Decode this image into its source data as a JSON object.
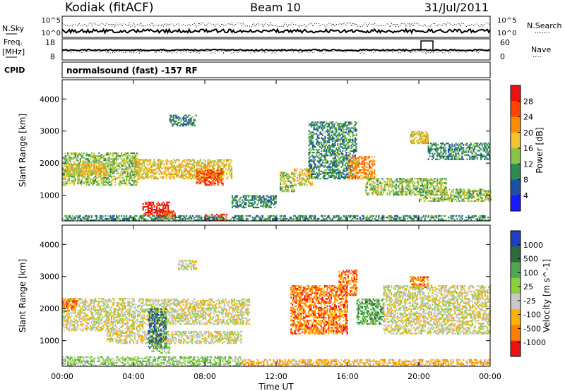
{
  "header": {
    "station": "Kodiak (fitACF)",
    "beam": "Beam 10",
    "date": "31/Jul/2011",
    "mode": "normalsound (fast) -157 RF"
  },
  "strip_labels": {
    "nsky": "N.Sky",
    "nsearch": "N.Search",
    "freq_line1": "Freq.",
    "freq_line2": "[MHz]",
    "nave": "Nave",
    "cpid": "CPID",
    "top_left_ticks": [
      "10^5",
      "10^0"
    ],
    "top_right_ticks": [
      "10^5",
      "10^0"
    ],
    "freq_ticks": [
      "18",
      "8"
    ],
    "nave_ticks": [
      "60",
      "0"
    ]
  },
  "chart_data": [
    {
      "type": "heatmap",
      "title": "",
      "xlabel": "Time UT",
      "ylabel": "Slant Range [km]",
      "x_tick_labels": [
        "00:00",
        "04:00",
        "08:00",
        "12:00",
        "16:00",
        "20:00",
        "00:00"
      ],
      "x_ticks_hours": [
        0,
        4,
        8,
        12,
        16,
        20,
        24
      ],
      "xlim": [
        0,
        24
      ],
      "y_ticks": [
        1000,
        2000,
        3000,
        4000
      ],
      "ylim": [
        200,
        4600
      ],
      "colorbar": {
        "label": "Power [dB]",
        "tick_labels": [
          "4",
          "8",
          "12",
          "16",
          "20",
          "24",
          "28"
        ],
        "colors": [
          "#1a1aff",
          "#1f4fa8",
          "#2e8b57",
          "#8bc34a",
          "#f4c430",
          "#ff8c00",
          "#ff4500",
          "#ee1111"
        ]
      },
      "regions": [
        {
          "t0": 0.0,
          "t1": 4.2,
          "r0": 1300,
          "r1": 2300,
          "level": 3
        },
        {
          "t0": 0.2,
          "t1": 2.5,
          "r0": 1600,
          "r1": 2000,
          "level": 4
        },
        {
          "t0": 4.0,
          "t1": 9.5,
          "r0": 1500,
          "r1": 2100,
          "level": 4
        },
        {
          "t0": 7.5,
          "t1": 9.0,
          "r0": 1300,
          "r1": 1800,
          "level": 6
        },
        {
          "t0": 4.5,
          "t1": 6.0,
          "r0": 350,
          "r1": 800,
          "level": 7
        },
        {
          "t0": 5.3,
          "t1": 6.3,
          "r0": 250,
          "r1": 500,
          "level": 6
        },
        {
          "t0": 8.0,
          "t1": 9.2,
          "r0": 200,
          "r1": 400,
          "level": 7
        },
        {
          "t0": 6.0,
          "t1": 7.5,
          "r0": 3150,
          "r1": 3500,
          "level": 2
        },
        {
          "t0": 12.2,
          "t1": 13.0,
          "r0": 1100,
          "r1": 1700,
          "level": 3
        },
        {
          "t0": 13.0,
          "t1": 14.0,
          "r0": 1300,
          "r1": 1800,
          "level": 4
        },
        {
          "t0": 13.8,
          "t1": 16.5,
          "r0": 1500,
          "r1": 3300,
          "level": 2
        },
        {
          "t0": 16.0,
          "t1": 17.5,
          "r0": 1500,
          "r1": 2200,
          "level": 5
        },
        {
          "t0": 17.0,
          "t1": 21.5,
          "r0": 1000,
          "r1": 1500,
          "level": 3
        },
        {
          "t0": 19.5,
          "t1": 20.5,
          "r0": 2600,
          "r1": 3000,
          "level": 4
        },
        {
          "t0": 20.5,
          "t1": 24.0,
          "r0": 2100,
          "r1": 2600,
          "level": 2
        },
        {
          "t0": 20.0,
          "t1": 24.0,
          "r0": 800,
          "r1": 1200,
          "level": 3
        },
        {
          "t0": 0.0,
          "t1": 24.0,
          "r0": 200,
          "r1": 380,
          "level": 2
        },
        {
          "t0": 9.5,
          "t1": 12.0,
          "r0": 600,
          "r1": 1000,
          "level": 2
        }
      ]
    },
    {
      "type": "heatmap",
      "title": "",
      "xlabel": "Time UT",
      "ylabel": "Slant Range [km]",
      "x_tick_labels": [
        "00:00",
        "04:00",
        "08:00",
        "12:00",
        "16:00",
        "20:00",
        "00:00"
      ],
      "x_ticks_hours": [
        0,
        4,
        8,
        12,
        16,
        20,
        24
      ],
      "xlim": [
        0,
        24
      ],
      "y_ticks": [
        1000,
        2000,
        3000,
        4000
      ],
      "ylim": [
        200,
        4600
      ],
      "colorbar": {
        "label": "Velocity [m s^-1]",
        "tick_labels": [
          "1000",
          "500",
          "100",
          "25",
          "-25",
          "-100",
          "-500",
          "-1000"
        ],
        "colors": [
          "#1f3fbf",
          "#2e6b3e",
          "#4fa84f",
          "#8ccf3f",
          "#c8c8c8",
          "#ffb000",
          "#ff8000",
          "#ee1111"
        ]
      },
      "regions": [
        {
          "t0": 0.0,
          "t1": 4.5,
          "r0": 1300,
          "r1": 2300,
          "level": 4
        },
        {
          "t0": 4.5,
          "t1": 10.5,
          "r0": 1500,
          "r1": 2300,
          "level": 4
        },
        {
          "t0": 2.5,
          "t1": 10.0,
          "r0": 900,
          "r1": 1300,
          "level": 4
        },
        {
          "t0": 4.8,
          "t1": 5.8,
          "r0": 750,
          "r1": 2000,
          "level": 1
        },
        {
          "t0": 5.0,
          "t1": 6.0,
          "r0": 600,
          "r1": 900,
          "level": 3
        },
        {
          "t0": 6.5,
          "t1": 7.5,
          "r0": 3200,
          "r1": 3500,
          "level": 4
        },
        {
          "t0": 12.8,
          "t1": 16.0,
          "r0": 1200,
          "r1": 2700,
          "level": 6
        },
        {
          "t0": 15.5,
          "t1": 16.5,
          "r0": 2400,
          "r1": 3200,
          "level": 6
        },
        {
          "t0": 16.5,
          "t1": 18.0,
          "r0": 1500,
          "r1": 2300,
          "level": 2
        },
        {
          "t0": 19.5,
          "t1": 20.5,
          "r0": 2600,
          "r1": 3000,
          "level": 6
        },
        {
          "t0": 18.0,
          "t1": 24.0,
          "r0": 1200,
          "r1": 2700,
          "level": 4
        },
        {
          "t0": 10.0,
          "t1": 24.0,
          "r0": 200,
          "r1": 400,
          "level": 5
        },
        {
          "t0": 0.0,
          "t1": 10.0,
          "r0": 200,
          "r1": 500,
          "level": 3
        },
        {
          "t0": 0.0,
          "t1": 0.8,
          "r0": 1900,
          "r1": 2300,
          "level": 6
        }
      ]
    }
  ]
}
